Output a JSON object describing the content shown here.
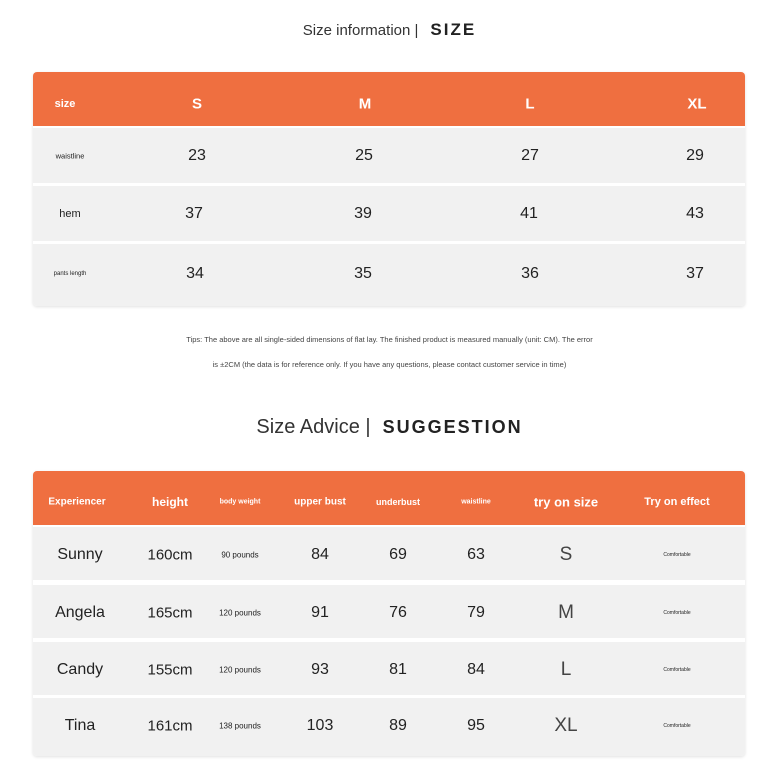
{
  "size_info": {
    "title": "Size information |",
    "title_en": "SIZE",
    "headers": [
      "size",
      "S",
      "M",
      "L",
      "XL"
    ],
    "rows": [
      {
        "label": "waistline",
        "values": [
          "23",
          "25",
          "27",
          "29"
        ]
      },
      {
        "label": "hem",
        "values": [
          "37",
          "39",
          "41",
          "43"
        ]
      },
      {
        "label": "pants length",
        "values": [
          "34",
          "35",
          "36",
          "37"
        ]
      }
    ],
    "tips": [
      "Tips: The above are all single-sided dimensions of flat lay. The finished product is measured manually (unit: CM). The error",
      "is ±2CM (the data is for reference only. If you have any questions, please contact customer service in time)"
    ]
  },
  "size_advice": {
    "title": "Size Advice |",
    "title_en": "SUGGESTION",
    "headers": [
      "Experiencer",
      "height",
      "body weight",
      "upper bust",
      "underbust",
      "waistline",
      "try on size",
      "Try on effect"
    ],
    "rows": [
      [
        "Sunny",
        "160cm",
        "90 pounds",
        "84",
        "69",
        "63",
        "S",
        "Comfortable"
      ],
      [
        "Angela",
        "165cm",
        "120 pounds",
        "91",
        "76",
        "79",
        "M",
        "Comfortable"
      ],
      [
        "Candy",
        "155cm",
        "120 pounds",
        "93",
        "81",
        "84",
        "L",
        "Comfortable"
      ],
      [
        "Tina",
        "161cm",
        "138 pounds",
        "103",
        "89",
        "95",
        "XL",
        "Comfortable"
      ]
    ]
  },
  "colors": {
    "accent": "#ef6f40",
    "row_bg": "#f1f1f1"
  }
}
